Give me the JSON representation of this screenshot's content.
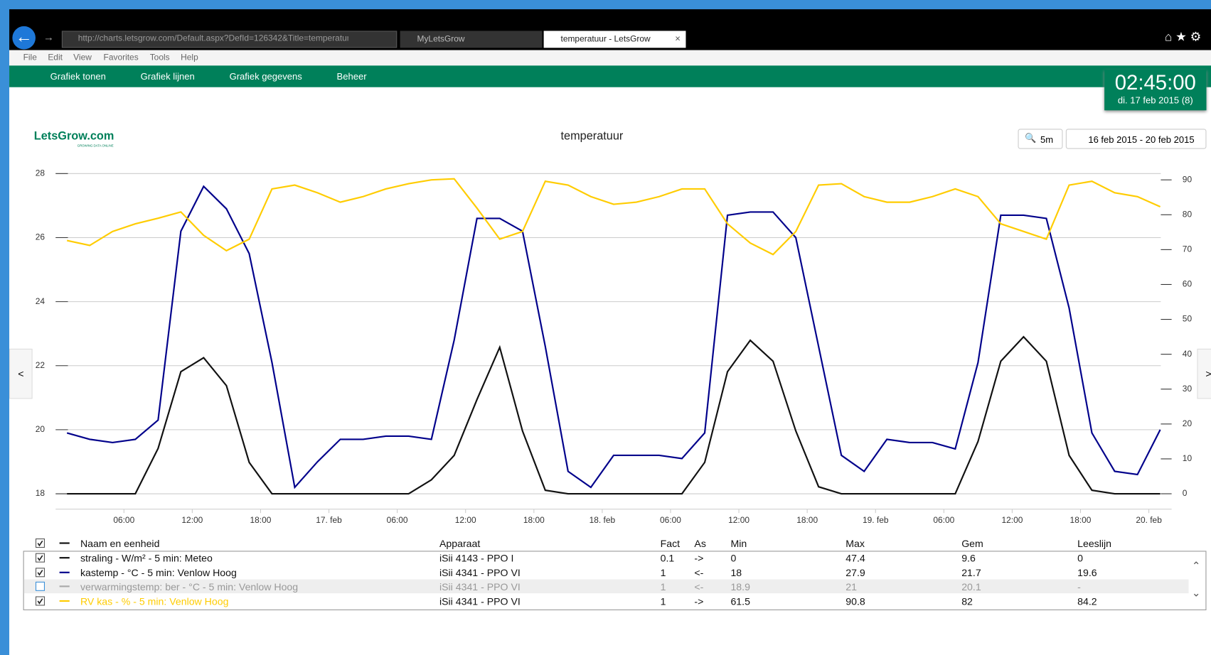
{
  "browser": {
    "url": "http://charts.letsgrow.com/Default.aspx?DefId=126342&Title=temperatur",
    "tabs": [
      "MyLetsGrow",
      "temperatuur - LetsGrow"
    ],
    "menu": [
      "File",
      "Edit",
      "View",
      "Favorites",
      "Tools",
      "Help"
    ]
  },
  "nav": [
    "Grafiek tonen",
    "Grafiek lijnen",
    "Grafiek gegevens",
    "Beheer"
  ],
  "clock": {
    "time": "02:45:00",
    "date": "di. 17 feb 2015 (8)"
  },
  "logo": {
    "name": "LetsGrow.com",
    "tagline": "GROWING DATA ONLINE"
  },
  "controls": {
    "interval": "5m",
    "range": "16 feb 2015 - 20 feb 2015",
    "prev": "<",
    "next": ">"
  },
  "chart_data": {
    "type": "line",
    "title": "temperatuur",
    "x": [
      1,
      3,
      5,
      7,
      9,
      11,
      13,
      15,
      17,
      19,
      21,
      23,
      25,
      27,
      29,
      31,
      33,
      35,
      37,
      39,
      41,
      43,
      45,
      47,
      49,
      51,
      53,
      55,
      57,
      59,
      61,
      63,
      65,
      67,
      69,
      71,
      73,
      75,
      77,
      79,
      81,
      83,
      85,
      87,
      89,
      91,
      93,
      95,
      97
    ],
    "xlim": [
      0,
      98
    ],
    "xticks": [
      {
        "value": 6,
        "label": "06:00"
      },
      {
        "value": 12,
        "label": "12:00"
      },
      {
        "value": 18,
        "label": "18:00"
      },
      {
        "value": 24,
        "label": "17. feb"
      },
      {
        "value": 30,
        "label": "06:00"
      },
      {
        "value": 36,
        "label": "12:00"
      },
      {
        "value": 42,
        "label": "18:00"
      },
      {
        "value": 48,
        "label": "18. feb"
      },
      {
        "value": 54,
        "label": "06:00"
      },
      {
        "value": 60,
        "label": "12:00"
      },
      {
        "value": 66,
        "label": "18:00"
      },
      {
        "value": 72,
        "label": "19. feb"
      },
      {
        "value": 78,
        "label": "06:00"
      },
      {
        "value": 84,
        "label": "12:00"
      },
      {
        "value": 90,
        "label": "18:00"
      },
      {
        "value": 96,
        "label": "20. feb"
      }
    ],
    "ylim": [
      18,
      28
    ],
    "yticks": [
      18,
      20,
      22,
      24,
      26,
      28
    ],
    "y2lim": [
      0,
      91.8
    ],
    "y2ticks": [
      0,
      10,
      20,
      30,
      40,
      50,
      60,
      70,
      80,
      90
    ],
    "grid": true,
    "series": [
      {
        "name": "straling - W/m² - 5 min: Meteo",
        "color": "#111111",
        "axis": "y2",
        "values": [
          0,
          0,
          0,
          0,
          13,
          35,
          39,
          31,
          9,
          0,
          0,
          0,
          0,
          0,
          0,
          0,
          4,
          11,
          27,
          42,
          18,
          1,
          0,
          0,
          0,
          0,
          0,
          0,
          9,
          35,
          44,
          38,
          18,
          2,
          0,
          0,
          0,
          0,
          0,
          0,
          15,
          38,
          45,
          38,
          11,
          1,
          0,
          0,
          0
        ]
      },
      {
        "name": "kastemp - °C - 5 min: Venlow Hoog",
        "color": "#00008b",
        "values": [
          19.9,
          19.7,
          19.6,
          19.7,
          20.3,
          26.2,
          27.6,
          26.9,
          25.5,
          22.1,
          18.2,
          19.0,
          19.7,
          19.7,
          19.8,
          19.8,
          19.7,
          22.8,
          26.6,
          26.6,
          26.2,
          22.6,
          18.7,
          18.2,
          19.2,
          19.2,
          19.2,
          19.1,
          19.9,
          26.7,
          26.8,
          26.8,
          26.0,
          22.6,
          19.2,
          18.7,
          19.7,
          19.6,
          19.6,
          19.4,
          22.1,
          26.7,
          26.7,
          26.6,
          23.8,
          19.9,
          18.7,
          18.6,
          20.0
        ]
      },
      {
        "name": "RV kas - % - 5 min: Venlow Hoog",
        "color": "#ffcc00",
        "axis": "y2",
        "values": [
          72.6,
          71.2,
          75.2,
          77.4,
          79,
          80.8,
          74.1,
          69.7,
          73.0,
          87.4,
          88.5,
          86.3,
          83.6,
          85.2,
          87.4,
          88.9,
          90.0,
          90.3,
          81.9,
          73.0,
          75.2,
          89.6,
          88.5,
          85.2,
          83.0,
          83.6,
          85.2,
          87.4,
          87.4,
          77.4,
          71.9,
          68.6,
          75.2,
          88.5,
          88.9,
          85.2,
          83.6,
          83.6,
          85.2,
          87.4,
          85.2,
          77.4,
          75.2,
          73.0,
          88.5,
          89.6,
          86.3,
          85.2,
          82.3
        ]
      }
    ]
  },
  "legend_table": {
    "all_checked": true,
    "headers": [
      "Naam en eenheid",
      "Apparaat",
      "Fact",
      "As",
      "Min",
      "Max",
      "Gem",
      "Leeslijn"
    ],
    "rows": [
      {
        "checked": true,
        "apparaat": "iSii 4143 - PPO I",
        "fact": 0.1,
        "as": "->",
        "min": 0,
        "max": 47.4,
        "gem": 9.6,
        "leeslijn": 0
      },
      {
        "checked": true,
        "apparaat": "iSii 4341 - PPO VI",
        "fact": 1,
        "as": "<-",
        "min": 18,
        "max": 27.9,
        "gem": 21.7,
        "leeslijn": 19.6
      },
      {
        "checked": false,
        "naam": "verwarmingstemp: ber - °C - 5 min: Venlow Hoog",
        "color": "#aaaaaa",
        "apparaat": "iSii 4341 - PPO VI",
        "fact": 1,
        "as": "<-",
        "min": 18.9,
        "max": 21,
        "gem": 20.1,
        "leeslijn": "-"
      },
      {
        "checked": true,
        "apparaat": "iSii 4341 - PPO VI",
        "fact": 1,
        "as": "->",
        "min": 61.5,
        "max": 90.8,
        "gem": 82,
        "leeslijn": 84.2
      }
    ]
  }
}
